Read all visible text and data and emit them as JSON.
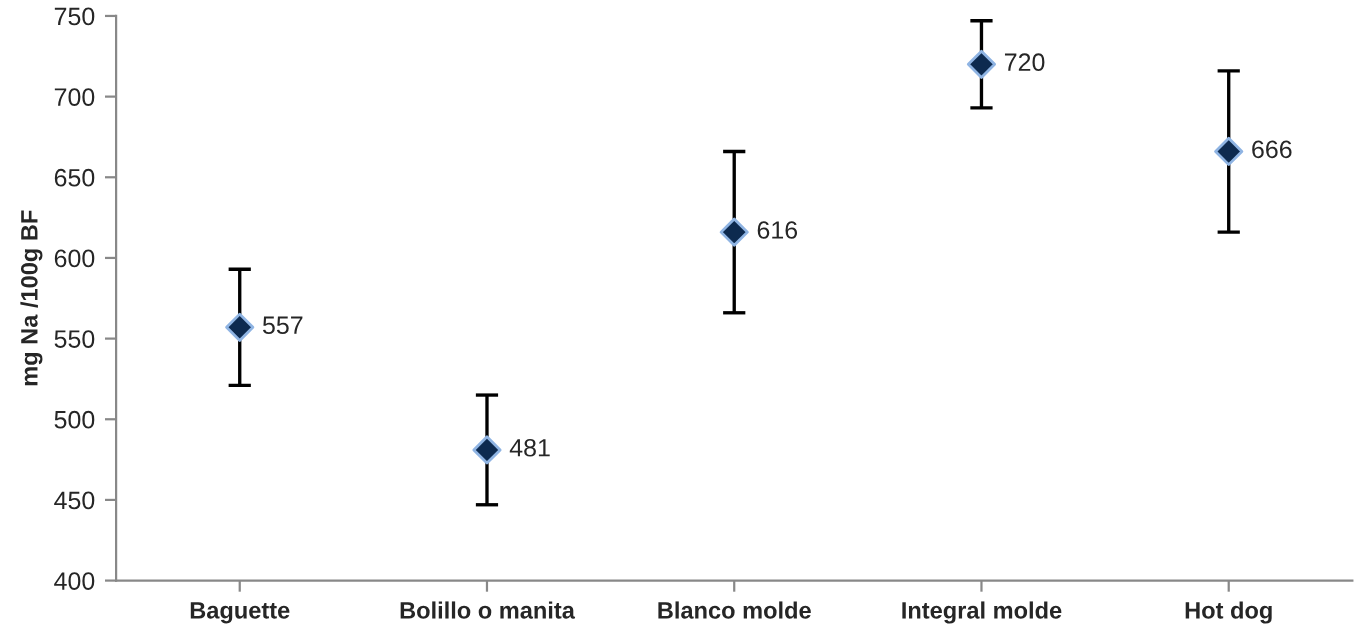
{
  "chart_data": {
    "type": "scatter",
    "ylabel": "mg Na /100g BF",
    "categories": [
      "Baguette",
      "Bolillo o manita",
      "Blanco molde",
      "Integral molde",
      "Hot dog"
    ],
    "values": [
      557,
      481,
      616,
      720,
      666
    ],
    "errors": [
      36,
      34,
      50,
      27,
      50
    ],
    "color": "#0d2a4f",
    "marker": "diamond",
    "data_labels": true,
    "grid": false,
    "legend": false,
    "ylim": [
      400,
      750
    ],
    "yticks": [
      400,
      450,
      500,
      550,
      600,
      650,
      700,
      750
    ]
  }
}
